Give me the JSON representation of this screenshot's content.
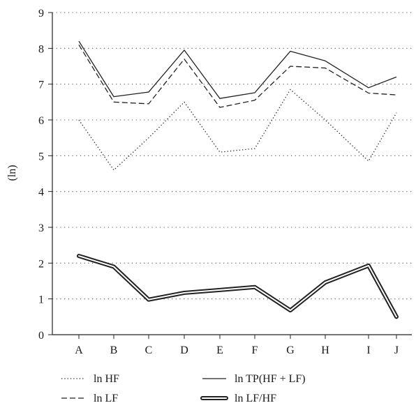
{
  "chart_data": {
    "type": "line",
    "title": "",
    "xlabel": "",
    "ylabel": "(ln)",
    "ylim": [
      0,
      9
    ],
    "y_ticks": [
      0,
      1,
      2,
      3,
      4,
      5,
      6,
      7,
      8,
      9
    ],
    "grid": "horizontal dotted",
    "legend_position": "bottom",
    "categories": [
      "A",
      "B",
      "C",
      "D",
      "E",
      "F",
      "G",
      "H",
      "I",
      "J"
    ],
    "series": [
      {
        "name": "ln HF",
        "style": "dotted",
        "color": "#222222",
        "values": [
          6.0,
          4.6,
          5.5,
          6.5,
          5.1,
          5.2,
          6.85,
          6.0,
          4.85,
          6.2
        ]
      },
      {
        "name": "ln LF",
        "style": "dashed",
        "color": "#222222",
        "values": [
          8.1,
          6.5,
          6.45,
          7.7,
          6.35,
          6.55,
          7.5,
          7.45,
          6.75,
          6.7
        ]
      },
      {
        "name": "ln TP(HF + LF)",
        "style": "solid",
        "color": "#222222",
        "values": [
          8.2,
          6.65,
          6.78,
          7.95,
          6.6,
          6.76,
          7.92,
          7.65,
          6.9,
          7.2
        ]
      },
      {
        "name": "ln LF/HF",
        "style": "double",
        "color": "#222222",
        "values": [
          2.2,
          1.9,
          0.98,
          1.17,
          1.25,
          1.33,
          0.68,
          1.46,
          1.93,
          0.5
        ]
      }
    ]
  }
}
